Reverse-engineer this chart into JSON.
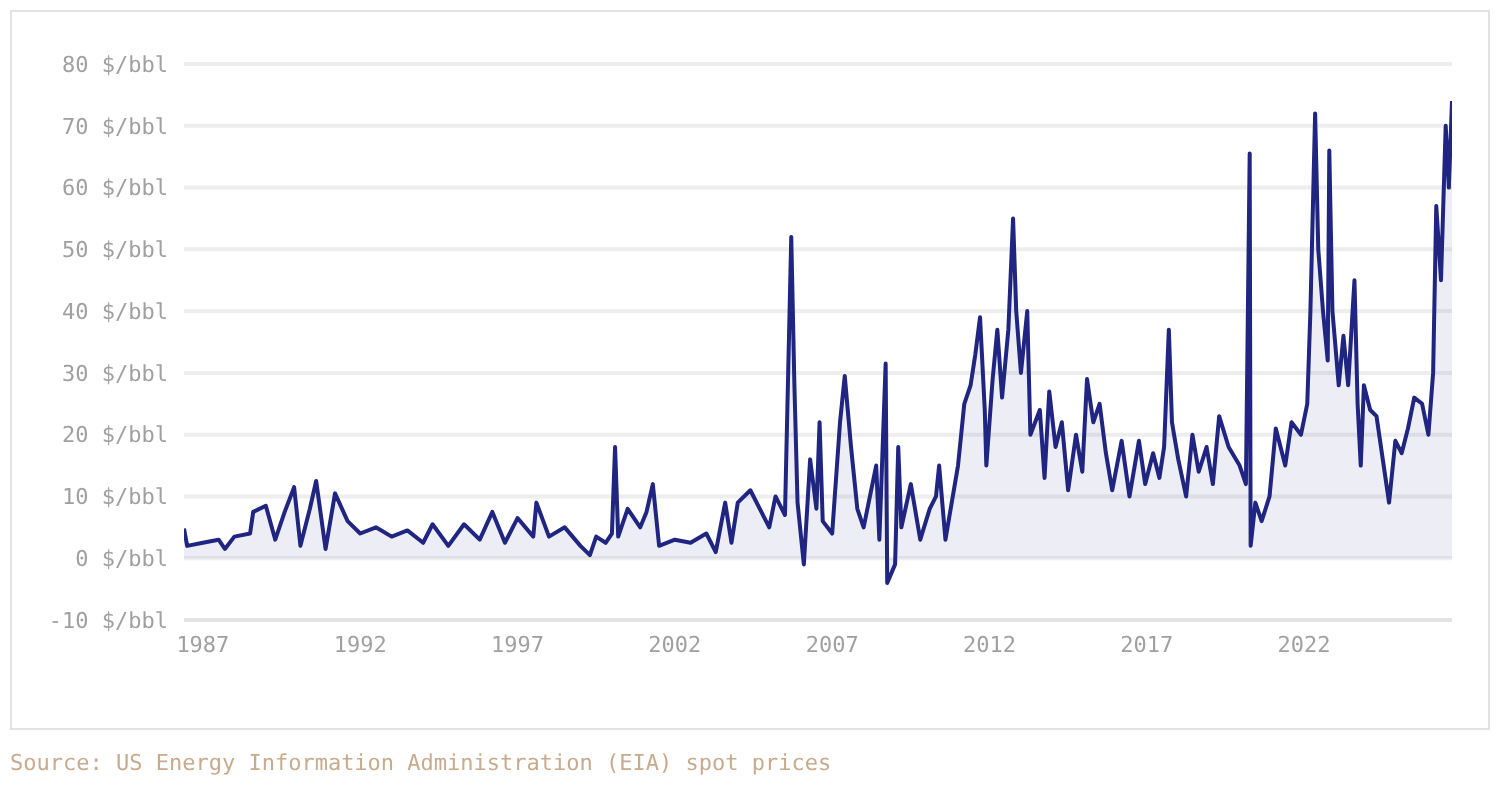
{
  "chart_data": {
    "type": "area",
    "annotations": [
      "Source: US Energy Information Administration (EIA) spot prices"
    ],
    "x": [
      1986.4,
      1986.5,
      1987,
      1987.5,
      1987.7,
      1988,
      1988.5,
      1988.6,
      1989,
      1989.3,
      1989.6,
      1989.9,
      1990.1,
      1990.4,
      1990.6,
      1990.9,
      1991.2,
      1991.6,
      1992,
      1992.5,
      1993,
      1993.5,
      1994,
      1994.3,
      1994.8,
      1995.3,
      1995.8,
      1996.2,
      1996.6,
      1997,
      1997.5,
      1997.6,
      1998,
      1998.5,
      1999,
      1999.3,
      1999.5,
      1999.8,
      2000,
      2000.1,
      2000.2,
      2000.5,
      2000.9,
      2001.1,
      2001.3,
      2001.5,
      2002,
      2002.5,
      2003,
      2003.3,
      2003.6,
      2003.8,
      2004,
      2004.4,
      2005,
      2005.2,
      2005.5,
      2005.7,
      2005.8,
      2005.9,
      2006.1,
      2006.3,
      2006.5,
      2006.6,
      2006.7,
      2007,
      2007.25,
      2007.4,
      2007.6,
      2007.8,
      2008,
      2008.2,
      2008.4,
      2008.5,
      2008.7,
      2008.75,
      2009,
      2009.1,
      2009.2,
      2009.5,
      2009.8,
      2010.1,
      2010.3,
      2010.4,
      2010.6,
      2011,
      2011.2,
      2011.4,
      2011.55,
      2011.7,
      2011.85,
      2011.9,
      2012.1,
      2012.25,
      2012.4,
      2012.6,
      2012.75,
      2012.85,
      2013,
      2013.2,
      2013.3,
      2013.6,
      2013.75,
      2013.9,
      2014.1,
      2014.3,
      2014.5,
      2014.75,
      2014.95,
      2015.1,
      2015.3,
      2015.5,
      2015.7,
      2015.9,
      2016.2,
      2016.45,
      2016.75,
      2016.95,
      2017.2,
      2017.4,
      2017.55,
      2017.7,
      2017.8,
      2018,
      2018.25,
      2018.45,
      2018.65,
      2018.9,
      2019.1,
      2019.3,
      2019.6,
      2019.95,
      2020.15,
      2020.27,
      2020.3,
      2020.45,
      2020.65,
      2020.9,
      2021.1,
      2021.4,
      2021.6,
      2021.9,
      2022.1,
      2022.2,
      2022.35,
      2022.45,
      2022.6,
      2022.75,
      2022.8,
      2022.9,
      2023.1,
      2023.25,
      2023.4,
      2023.6,
      2023.7,
      2023.8,
      2023.9,
      2024.1,
      2024.3,
      2024.5,
      2024.7,
      2024.9,
      2025.1,
      2025.3,
      2025.5,
      2025.75,
      2025.95,
      2026.1,
      2026.2,
      2026.35,
      2026.5,
      2026.6,
      2026.7
    ],
    "series": [
      {
        "color": "#1f2580",
        "values": [
          4.8,
          2,
          2.5,
          3,
          1.5,
          3.5,
          4,
          7.5,
          8.5,
          3,
          7.5,
          11.5,
          2,
          8,
          12.5,
          1.5,
          10.5,
          6,
          4,
          5,
          3.5,
          4.5,
          2.5,
          5.5,
          2,
          5.5,
          3,
          7.5,
          2.5,
          6.5,
          3.5,
          9,
          3.5,
          5,
          2,
          0.5,
          3.5,
          2.5,
          4,
          18,
          3.5,
          8,
          5,
          7.5,
          12,
          2,
          3,
          2.5,
          4,
          1,
          9,
          2.5,
          9,
          11,
          5,
          10,
          7,
          52,
          28,
          9,
          -1,
          16,
          8,
          22,
          6,
          4,
          22,
          29.5,
          18,
          8,
          5,
          10,
          15,
          3,
          31.5,
          -4,
          -1,
          18,
          5,
          12,
          3,
          8,
          10,
          15,
          3,
          15,
          25,
          28,
          33,
          39,
          24,
          15,
          29,
          37,
          26,
          37,
          55,
          40,
          30,
          40,
          20,
          24,
          13,
          27,
          18,
          22,
          11,
          20,
          14,
          29,
          22,
          25,
          17,
          11,
          19,
          10,
          19,
          12,
          17,
          13,
          18,
          37,
          22,
          16,
          10,
          20,
          14,
          18,
          12,
          23,
          18,
          15,
          12,
          65.5,
          2,
          9,
          6,
          10,
          21,
          15,
          22,
          20,
          25,
          40,
          72,
          50,
          40,
          32,
          66,
          40,
          28,
          36,
          28,
          45,
          25,
          15,
          28,
          24,
          23,
          16,
          9,
          19,
          17,
          21,
          26,
          25,
          20,
          30,
          57,
          45,
          70,
          60,
          74
        ]
      }
    ],
    "xlim": [
      1986.4,
      2026.7
    ],
    "xticks": [
      1987,
      1992,
      1997,
      2002,
      2007,
      2012,
      2017,
      2022
    ],
    "ylim": [
      -10,
      80
    ],
    "yticks": [
      {
        "value": -10,
        "label": "-10 $/bbl"
      },
      {
        "value": 0,
        "label": "0 $/bbl"
      },
      {
        "value": 10,
        "label": "10 $/bbl"
      },
      {
        "value": 20,
        "label": "20 $/bbl"
      },
      {
        "value": 30,
        "label": "30 $/bbl"
      },
      {
        "value": 40,
        "label": "40 $/bbl"
      },
      {
        "value": 50,
        "label": "50 $/bbl"
      },
      {
        "value": 60,
        "label": "60 $/bbl"
      },
      {
        "value": 70,
        "label": "70 $/bbl"
      },
      {
        "value": 80,
        "label": "80 $/bbl"
      }
    ],
    "grid": "y",
    "legend": false
  }
}
